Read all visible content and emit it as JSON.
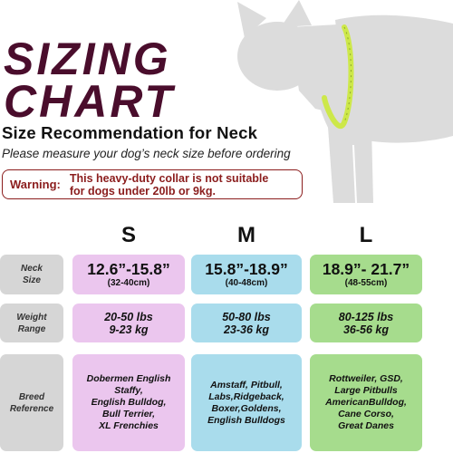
{
  "title": {
    "line1": "SIZING",
    "line2": "CHART"
  },
  "subtitle": "Size Recommendation for Neck",
  "instruction": "Please measure your dog’s neck size before ordering",
  "warning": {
    "label": "Warning:",
    "line1": "This heavy-duty collar is not suitable",
    "line2": "for dogs under 20lb or 9kg."
  },
  "colors": {
    "title": "#4a0d2c",
    "warning": "#8b1d1d",
    "small": "#ebc6ee",
    "medium": "#a9dcec",
    "large": "#a6dc8d",
    "label_bg": "#d6d6d6"
  },
  "icons": {
    "illustration": "dog-silhouette-with-measuring-tape"
  },
  "sizes": [
    "S",
    "M",
    "L"
  ],
  "rows": {
    "neck": {
      "label1": "Neck",
      "label2": "Size",
      "values": [
        {
          "main": "12.6”-15.8”",
          "sub": "(32-40cm)"
        },
        {
          "main": "15.8”-18.9”",
          "sub": "(40-48cm)"
        },
        {
          "main": "18.9”- 21.7”",
          "sub": "(48-55cm)"
        }
      ]
    },
    "weight": {
      "label1": "Weight",
      "label2": "Range",
      "values": [
        {
          "lbs": "20-50 lbs",
          "kg": "9-23 kg"
        },
        {
          "lbs": "50-80 lbs",
          "kg": "23-36 kg"
        },
        {
          "lbs": "80-125 lbs",
          "kg": "36-56 kg"
        }
      ]
    },
    "breed": {
      "label1": "Breed",
      "label2": "Reference",
      "values": [
        [
          "Dobermen English",
          "Staffy,",
          "English Bulldog,",
          "Bull Terrier,",
          "XL Frenchies"
        ],
        [
          "Amstaff, Pitbull,",
          "Labs,Ridgeback,",
          "Boxer,Goldens,",
          "English Bulldogs"
        ],
        [
          "Rottweiler, GSD,",
          "Large Pitbulls",
          "AmericanBulldog,",
          "Cane Corso,",
          "Great Danes"
        ]
      ]
    }
  }
}
